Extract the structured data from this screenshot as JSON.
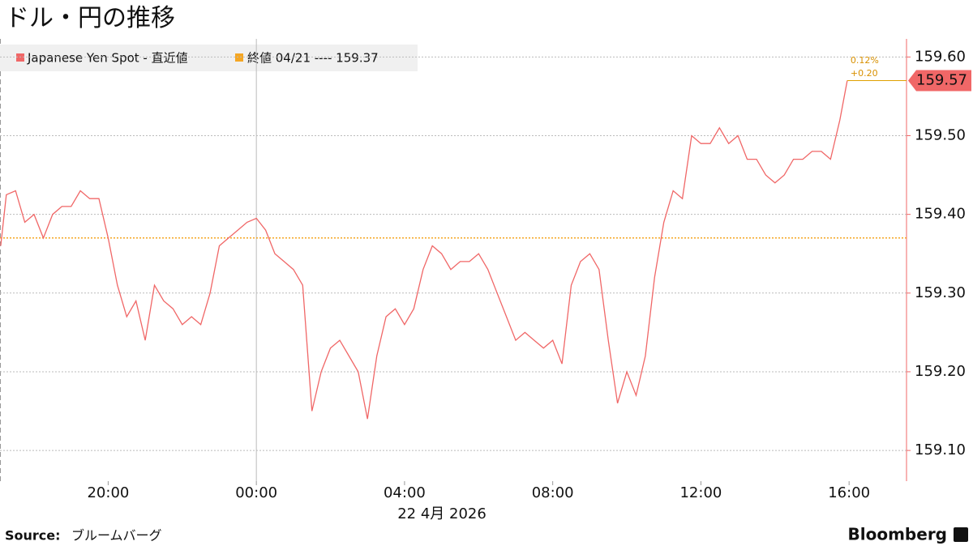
{
  "chart_data": {
    "type": "line",
    "title": "ドル・円の推移",
    "x": [
      17.1,
      17.25,
      17.5,
      17.75,
      18,
      18.25,
      18.5,
      18.75,
      19,
      19.25,
      19.5,
      19.75,
      20,
      20.25,
      20.5,
      20.75,
      21,
      21.25,
      21.5,
      21.75,
      22,
      22.25,
      22.5,
      22.75,
      23,
      23.25,
      23.5,
      23.75,
      24,
      24.25,
      24.5,
      24.75,
      25,
      25.25,
      25.5,
      25.75,
      26,
      26.25,
      26.5,
      26.75,
      27,
      27.25,
      27.5,
      27.75,
      28,
      28.25,
      28.5,
      28.75,
      29,
      29.25,
      29.5,
      29.75,
      30,
      30.25,
      30.5,
      30.75,
      31,
      31.25,
      31.5,
      31.75,
      32,
      32.25,
      32.5,
      32.75,
      33,
      33.25,
      33.5,
      33.75,
      34,
      34.25,
      34.5,
      34.75,
      35,
      35.25,
      35.5,
      35.75,
      36,
      36.25,
      36.5,
      36.75,
      37,
      37.25,
      37.5,
      37.75,
      38,
      38.25,
      38.5,
      38.75,
      39,
      39.25,
      39.5,
      39.75,
      39.95
    ],
    "series": [
      {
        "name": "Japanese Yen Spot - 直近値",
        "color": "#f06767",
        "values": [
          159.36,
          159.425,
          159.43,
          159.39,
          159.4,
          159.37,
          159.4,
          159.41,
          159.41,
          159.43,
          159.42,
          159.42,
          159.37,
          159.31,
          159.27,
          159.29,
          159.24,
          159.31,
          159.29,
          159.28,
          159.26,
          159.27,
          159.26,
          159.3,
          159.36,
          159.37,
          159.38,
          159.39,
          159.395,
          159.38,
          159.35,
          159.34,
          159.33,
          159.31,
          159.15,
          159.2,
          159.23,
          159.24,
          159.22,
          159.2,
          159.14,
          159.22,
          159.27,
          159.28,
          159.26,
          159.28,
          159.33,
          159.36,
          159.35,
          159.33,
          159.34,
          159.34,
          159.35,
          159.33,
          159.3,
          159.27,
          159.24,
          159.25,
          159.24,
          159.23,
          159.24,
          159.21,
          159.31,
          159.34,
          159.35,
          159.33,
          159.24,
          159.16,
          159.2,
          159.17,
          159.22,
          159.32,
          159.39,
          159.43,
          159.42,
          159.5,
          159.49,
          159.49,
          159.51,
          159.49,
          159.5,
          159.47,
          159.47,
          159.45,
          159.44,
          159.45,
          159.47,
          159.47,
          159.48,
          159.48,
          159.47,
          159.52,
          159.57
        ]
      }
    ],
    "reference_line": {
      "value": 159.37,
      "color": "#f5a623",
      "label": "終値 04/21 ---- 159.37"
    },
    "last_value": 159.57,
    "annotations": [
      "0.12%",
      "+0.20"
    ],
    "xlim": [
      17.08,
      41.55
    ],
    "xticks": [
      {
        "value": 20,
        "label": "20:00"
      },
      {
        "value": 24,
        "label": "00:00"
      },
      {
        "value": 28,
        "label": "04:00"
      },
      {
        "value": 32,
        "label": "08:00"
      },
      {
        "value": 36,
        "label": "12:00"
      },
      {
        "value": 40,
        "label": "16:00"
      }
    ],
    "x_date_label": "22 4月 2026",
    "ylim": [
      159.061,
      159.623
    ],
    "yticks": [
      {
        "value": 159.1,
        "label": "159.10"
      },
      {
        "value": 159.2,
        "label": "159.20"
      },
      {
        "value": 159.3,
        "label": "159.30"
      },
      {
        "value": 159.4,
        "label": "159.40"
      },
      {
        "value": 159.5,
        "label": "159.50"
      },
      {
        "value": 159.6,
        "label": "159.60"
      }
    ],
    "grid": true,
    "source_label": "Source:",
    "source": "ブルームバーグ",
    "brand": "Bloomberg"
  }
}
